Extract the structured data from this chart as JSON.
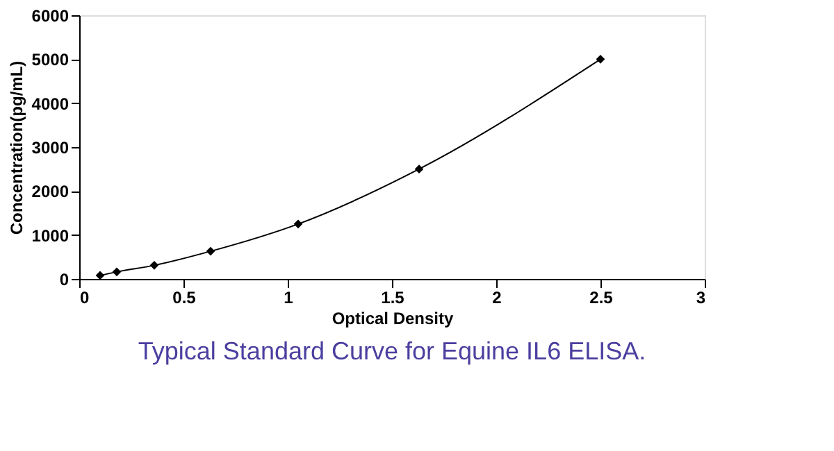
{
  "chart_data": {
    "type": "line",
    "title": "Typical Standard Curve for Equine IL6 ELISA.",
    "xlabel": "Optical Density",
    "ylabel": "Concentration(pg/mL)",
    "x": [
      0.1,
      0.18,
      0.36,
      0.63,
      1.05,
      1.63,
      2.5
    ],
    "series": [
      {
        "color": "#000000",
        "values": [
          80,
          160,
          310,
          630,
          1250,
          2500,
          5000
        ]
      }
    ],
    "xlim": [
      0,
      3
    ],
    "xticks": [
      0,
      0.5,
      1,
      1.5,
      2,
      2.5,
      3
    ],
    "ylim": [
      0,
      6000
    ],
    "yticks": [
      0,
      1000,
      2000,
      3000,
      4000,
      5000,
      6000
    ],
    "grid": false,
    "marker": "diamond",
    "line_style": "solid"
  }
}
